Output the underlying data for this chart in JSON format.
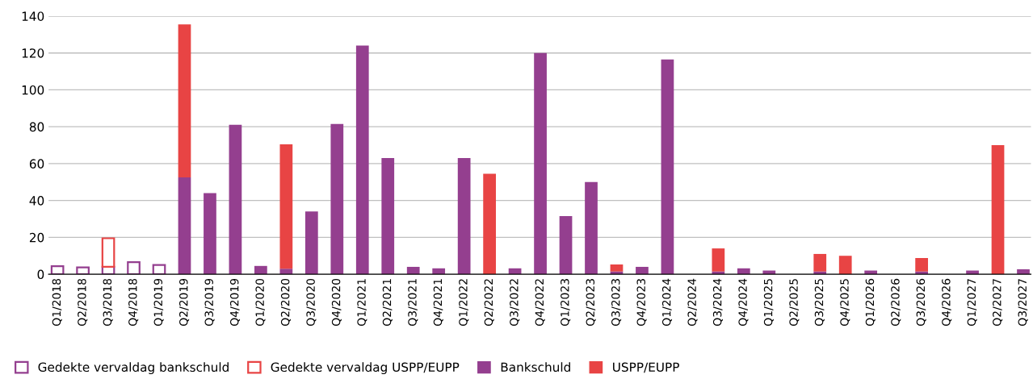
{
  "chart_data": {
    "type": "bar",
    "stacked": true,
    "categories": [
      "Q1/2018",
      "Q2/2018",
      "Q3/2018",
      "Q4/2018",
      "Q1/2019",
      "Q2/2019",
      "Q3/2019",
      "Q4/2019",
      "Q1/2020",
      "Q2/2020",
      "Q3/2020",
      "Q4/2020",
      "Q1/2021",
      "Q2/2021",
      "Q3/2021",
      "Q4/2021",
      "Q1/2022",
      "Q2/2022",
      "Q3/2022",
      "Q4/2022",
      "Q1/2023",
      "Q2/2023",
      "Q3/2023",
      "Q4/2023",
      "Q1/2024",
      "Q2/2024",
      "Q3/2024",
      "Q4/2024",
      "Q1/2025",
      "Q2/2025",
      "Q3/2025",
      "Q4/2025",
      "Q1/2026",
      "Q2/2026",
      "Q3/2026",
      "Q4/2026",
      "Q1/2027",
      "Q2/2027",
      "Q3/2027"
    ],
    "series": [
      {
        "name": "Gedekte vervaldag bankschuld",
        "color": "#943f8f",
        "values": [
          4.4,
          3.7,
          4,
          6.5,
          5,
          null,
          null,
          null,
          null,
          null,
          null,
          null,
          null,
          null,
          null,
          null,
          null,
          null,
          null,
          null,
          null,
          null,
          null,
          null,
          null,
          null,
          null,
          null,
          null,
          null,
          null,
          null,
          null,
          null,
          null,
          null,
          null,
          null,
          null
        ]
      },
      {
        "name": "Gedekte vervaldag USPP/EUPP",
        "color": "#e84444",
        "values": [
          null,
          null,
          15.5,
          null,
          null,
          null,
          null,
          null,
          null,
          null,
          null,
          null,
          null,
          null,
          null,
          null,
          null,
          null,
          null,
          null,
          null,
          null,
          null,
          null,
          null,
          null,
          null,
          null,
          null,
          null,
          null,
          null,
          null,
          null,
          null,
          null,
          null,
          null,
          null
        ]
      },
      {
        "name": "Bankschuld",
        "color": "#943f8f",
        "values": [
          null,
          null,
          null,
          null,
          null,
          52.5,
          44,
          81,
          4.5,
          3,
          34,
          81.5,
          124,
          63,
          4,
          3.2,
          63,
          null,
          3.2,
          120,
          31.5,
          50,
          1.5,
          4,
          116.5,
          null,
          1.5,
          3.2,
          2,
          null,
          1.5,
          null,
          2,
          null,
          1.5,
          null,
          2,
          null,
          2.7
        ]
      },
      {
        "name": "USPP/EUPP",
        "color": "#e84444",
        "values": [
          null,
          null,
          null,
          null,
          null,
          83,
          null,
          null,
          null,
          67.5,
          null,
          null,
          null,
          null,
          null,
          null,
          null,
          54.5,
          null,
          null,
          null,
          null,
          3.8,
          null,
          null,
          null,
          12.5,
          null,
          null,
          null,
          9.5,
          10,
          null,
          null,
          7.3,
          null,
          null,
          70,
          null
        ]
      }
    ],
    "ylim": [
      0,
      140
    ],
    "yticks": [
      0,
      20,
      40,
      60,
      80,
      100,
      120,
      140
    ],
    "grid": "y",
    "legend": "bottom left"
  }
}
